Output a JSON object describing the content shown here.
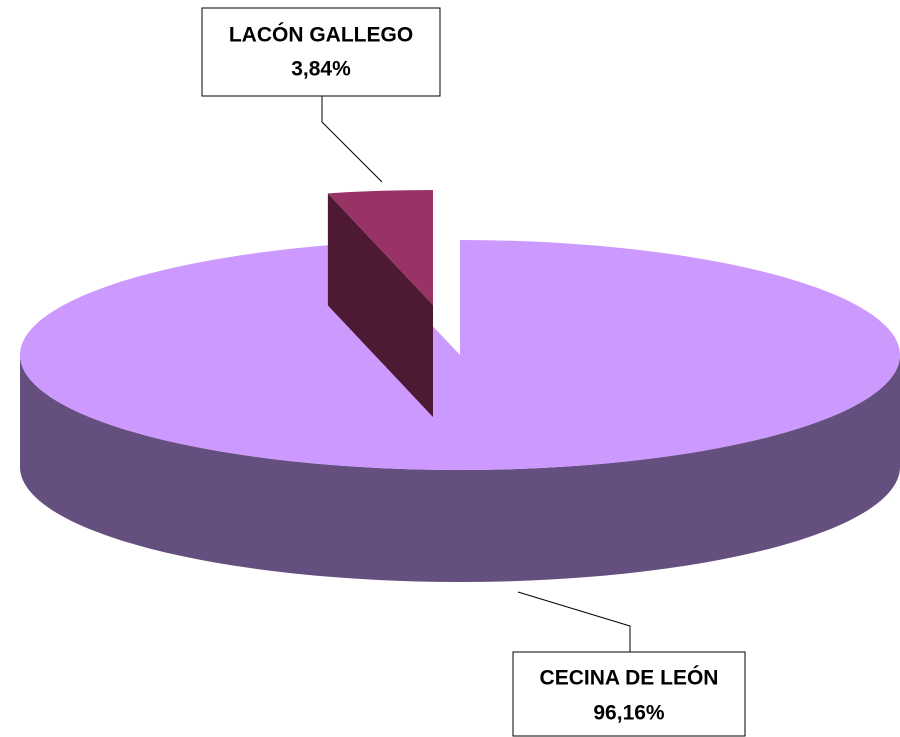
{
  "chart_data": {
    "type": "pie",
    "categories": [
      "CECINA DE LEÓN",
      "LACÓN GALLEGO"
    ],
    "values": [
      96.16,
      3.84
    ],
    "value_labels": [
      "96,16%",
      "3,84%"
    ],
    "colors": [
      "#cc99ff",
      "#993366"
    ],
    "side_colors": [
      "#654f7f",
      "#4d1933"
    ]
  }
}
